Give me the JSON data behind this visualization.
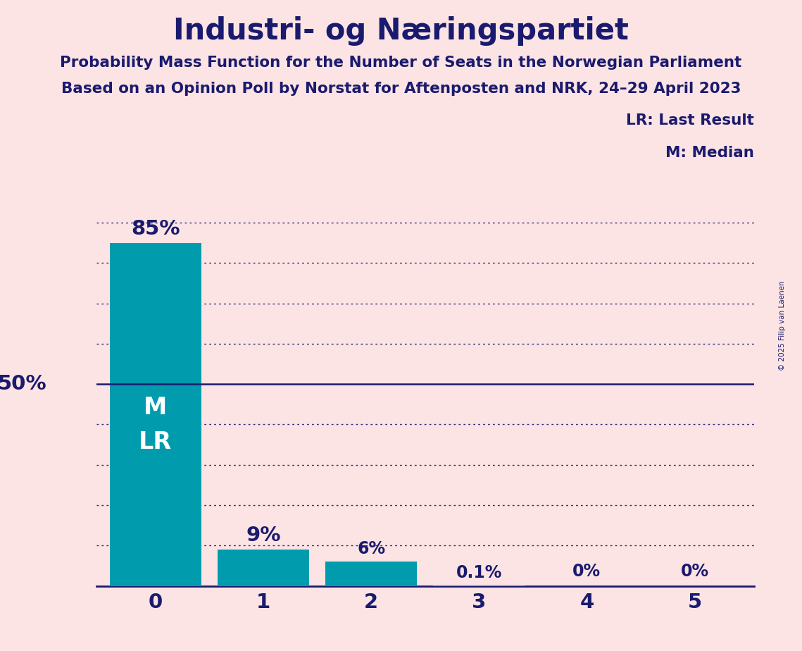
{
  "title": "Industri- og Næringspartiet",
  "subtitle1": "Probability Mass Function for the Number of Seats in the Norwegian Parliament",
  "subtitle2": "Based on an Opinion Poll by Norstat for Aftenposten and NRK, 24–29 April 2023",
  "copyright": "© 2025 Filip van Laenen",
  "categories": [
    0,
    1,
    2,
    3,
    4,
    5
  ],
  "values": [
    85,
    9,
    6,
    0.1,
    0,
    0
  ],
  "labels": [
    "85%",
    "9%",
    "6%",
    "0.1%",
    "0%",
    "0%"
  ],
  "bar_color": "#009cad",
  "background_color": "#fce4e4",
  "title_color": "#1a1a6e",
  "text_color": "#1a1a6e",
  "median_label": "M",
  "lr_label": "LR",
  "fifty_pct_line_color": "#1a1a6e",
  "dotted_line_color": "#1a1a6e",
  "ylim": [
    0,
    100
  ],
  "yticks": [
    10,
    20,
    30,
    40,
    60,
    70,
    80,
    90
  ],
  "legend_lr": "LR: Last Result",
  "legend_m": "M: Median",
  "ylabel_50": "50%",
  "bottom_spine_color": "#1a1a6e"
}
